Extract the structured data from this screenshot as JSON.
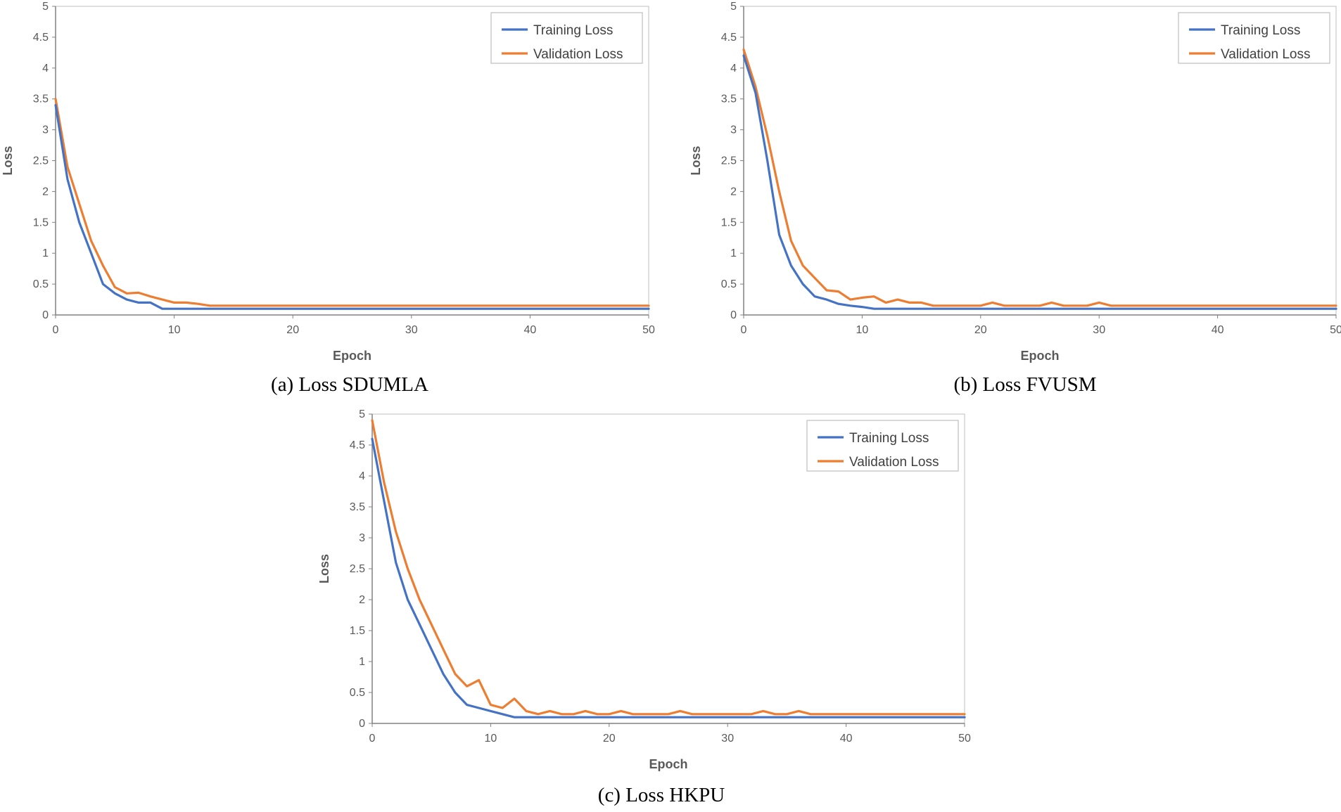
{
  "colors": {
    "training": "#4472C4",
    "validation": "#ED7D31",
    "axis": "#808080",
    "text": "#595959"
  },
  "chart_data": [
    {
      "type": "line",
      "caption": "(a) Loss SDUMLA",
      "xlabel": "Epoch",
      "ylabel": "Loss",
      "xlim": [
        0,
        50
      ],
      "ylim": [
        0,
        5
      ],
      "xticks": [
        "0",
        "10",
        "20",
        "30",
        "40",
        "50"
      ],
      "yticks": [
        "0",
        "0.5",
        "1",
        "1.5",
        "2",
        "2.5",
        "3",
        "3.5",
        "4",
        "4.5",
        "5"
      ],
      "legend": "top-right",
      "series": [
        {
          "name": "Training Loss",
          "x": [
            0,
            1,
            2,
            3,
            4,
            5,
            6,
            7,
            8,
            9,
            10,
            11,
            12,
            13,
            14,
            15,
            16,
            17,
            18,
            19,
            20,
            21,
            22,
            23,
            24,
            25,
            26,
            27,
            28,
            29,
            30,
            31,
            32,
            33,
            34,
            35,
            36,
            37,
            38,
            39,
            40,
            41,
            42,
            43,
            44,
            45,
            46,
            47,
            48,
            49,
            50
          ],
          "values": [
            3.4,
            2.2,
            1.5,
            1.0,
            0.5,
            0.35,
            0.25,
            0.2,
            0.2,
            0.1,
            0.1,
            0.1,
            0.1,
            0.1,
            0.1,
            0.1,
            0.1,
            0.1,
            0.1,
            0.1,
            0.1,
            0.1,
            0.1,
            0.1,
            0.1,
            0.1,
            0.1,
            0.1,
            0.1,
            0.1,
            0.1,
            0.1,
            0.1,
            0.1,
            0.1,
            0.1,
            0.1,
            0.1,
            0.1,
            0.1,
            0.1,
            0.1,
            0.1,
            0.1,
            0.1,
            0.1,
            0.1,
            0.1,
            0.1,
            0.1,
            0.1
          ]
        },
        {
          "name": "Validation Loss",
          "x": [
            0,
            1,
            2,
            3,
            4,
            5,
            6,
            7,
            8,
            9,
            10,
            11,
            12,
            13,
            14,
            15,
            16,
            17,
            18,
            19,
            20,
            21,
            22,
            23,
            24,
            25,
            26,
            27,
            28,
            29,
            30,
            31,
            32,
            33,
            34,
            35,
            36,
            37,
            38,
            39,
            40,
            41,
            42,
            43,
            44,
            45,
            46,
            47,
            48,
            49,
            50
          ],
          "values": [
            3.5,
            2.4,
            1.8,
            1.2,
            0.8,
            0.45,
            0.35,
            0.36,
            0.3,
            0.25,
            0.2,
            0.2,
            0.18,
            0.15,
            0.15,
            0.15,
            0.15,
            0.15,
            0.15,
            0.15,
            0.15,
            0.15,
            0.15,
            0.15,
            0.15,
            0.15,
            0.15,
            0.15,
            0.15,
            0.15,
            0.15,
            0.15,
            0.15,
            0.15,
            0.15,
            0.15,
            0.15,
            0.15,
            0.15,
            0.15,
            0.15,
            0.15,
            0.15,
            0.15,
            0.15,
            0.15,
            0.15,
            0.15,
            0.15,
            0.15,
            0.15
          ]
        }
      ]
    },
    {
      "type": "line",
      "caption": "(b) Loss FVUSM",
      "xlabel": "Epoch",
      "ylabel": "Loss",
      "xlim": [
        0,
        50
      ],
      "ylim": [
        0,
        5
      ],
      "xticks": [
        "0",
        "10",
        "20",
        "30",
        "40",
        "50"
      ],
      "yticks": [
        "0",
        "0.5",
        "1",
        "1.5",
        "2",
        "2.5",
        "3",
        "3.5",
        "4",
        "4.5",
        "5"
      ],
      "legend": "top-right",
      "series": [
        {
          "name": "Training Loss",
          "x": [
            0,
            1,
            2,
            3,
            4,
            5,
            6,
            7,
            8,
            9,
            10,
            11,
            12,
            13,
            14,
            15,
            16,
            17,
            18,
            19,
            20,
            21,
            22,
            23,
            24,
            25,
            26,
            27,
            28,
            29,
            30,
            31,
            32,
            33,
            34,
            35,
            36,
            37,
            38,
            39,
            40,
            41,
            42,
            43,
            44,
            45,
            46,
            47,
            48,
            49,
            50
          ],
          "values": [
            4.2,
            3.6,
            2.5,
            1.3,
            0.8,
            0.5,
            0.3,
            0.25,
            0.18,
            0.15,
            0.13,
            0.1,
            0.1,
            0.1,
            0.1,
            0.1,
            0.1,
            0.1,
            0.1,
            0.1,
            0.1,
            0.1,
            0.1,
            0.1,
            0.1,
            0.1,
            0.1,
            0.1,
            0.1,
            0.1,
            0.1,
            0.1,
            0.1,
            0.1,
            0.1,
            0.1,
            0.1,
            0.1,
            0.1,
            0.1,
            0.1,
            0.1,
            0.1,
            0.1,
            0.1,
            0.1,
            0.1,
            0.1,
            0.1,
            0.1,
            0.1
          ]
        },
        {
          "name": "Validation Loss",
          "x": [
            0,
            1,
            2,
            3,
            4,
            5,
            6,
            7,
            8,
            9,
            10,
            11,
            12,
            13,
            14,
            15,
            16,
            17,
            18,
            19,
            20,
            21,
            22,
            23,
            24,
            25,
            26,
            27,
            28,
            29,
            30,
            31,
            32,
            33,
            34,
            35,
            36,
            37,
            38,
            39,
            40,
            41,
            42,
            43,
            44,
            45,
            46,
            47,
            48,
            49,
            50
          ],
          "values": [
            4.3,
            3.7,
            2.9,
            2.0,
            1.2,
            0.8,
            0.6,
            0.4,
            0.38,
            0.25,
            0.28,
            0.3,
            0.2,
            0.25,
            0.2,
            0.2,
            0.15,
            0.15,
            0.15,
            0.15,
            0.15,
            0.2,
            0.15,
            0.15,
            0.15,
            0.15,
            0.2,
            0.15,
            0.15,
            0.15,
            0.2,
            0.15,
            0.15,
            0.15,
            0.15,
            0.15,
            0.15,
            0.15,
            0.15,
            0.15,
            0.15,
            0.15,
            0.15,
            0.15,
            0.15,
            0.15,
            0.15,
            0.15,
            0.15,
            0.15,
            0.15
          ]
        }
      ]
    },
    {
      "type": "line",
      "caption": "(c) Loss HKPU",
      "xlabel": "Epoch",
      "ylabel": "Loss",
      "xlim": [
        0,
        50
      ],
      "ylim": [
        0,
        5
      ],
      "xticks": [
        "0",
        "10",
        "20",
        "30",
        "40",
        "50"
      ],
      "yticks": [
        "0",
        "0.5",
        "1",
        "1.5",
        "2",
        "2.5",
        "3",
        "3.5",
        "4",
        "4.5",
        "5"
      ],
      "legend": "top-right",
      "series": [
        {
          "name": "Training Loss",
          "x": [
            0,
            1,
            2,
            3,
            4,
            5,
            6,
            7,
            8,
            9,
            10,
            11,
            12,
            13,
            14,
            15,
            16,
            17,
            18,
            19,
            20,
            21,
            22,
            23,
            24,
            25,
            26,
            27,
            28,
            29,
            30,
            31,
            32,
            33,
            34,
            35,
            36,
            37,
            38,
            39,
            40,
            41,
            42,
            43,
            44,
            45,
            46,
            47,
            48,
            49,
            50
          ],
          "values": [
            4.6,
            3.6,
            2.6,
            2.0,
            1.6,
            1.2,
            0.8,
            0.5,
            0.3,
            0.25,
            0.2,
            0.15,
            0.1,
            0.1,
            0.1,
            0.1,
            0.1,
            0.1,
            0.1,
            0.1,
            0.1,
            0.1,
            0.1,
            0.1,
            0.1,
            0.1,
            0.1,
            0.1,
            0.1,
            0.1,
            0.1,
            0.1,
            0.1,
            0.1,
            0.1,
            0.1,
            0.1,
            0.1,
            0.1,
            0.1,
            0.1,
            0.1,
            0.1,
            0.1,
            0.1,
            0.1,
            0.1,
            0.1,
            0.1,
            0.1,
            0.1
          ]
        },
        {
          "name": "Validation Loss",
          "x": [
            0,
            1,
            2,
            3,
            4,
            5,
            6,
            7,
            8,
            9,
            10,
            11,
            12,
            13,
            14,
            15,
            16,
            17,
            18,
            19,
            20,
            21,
            22,
            23,
            24,
            25,
            26,
            27,
            28,
            29,
            30,
            31,
            32,
            33,
            34,
            35,
            36,
            37,
            38,
            39,
            40,
            41,
            42,
            43,
            44,
            45,
            46,
            47,
            48,
            49,
            50
          ],
          "values": [
            4.9,
            3.9,
            3.1,
            2.5,
            2.0,
            1.6,
            1.2,
            0.8,
            0.6,
            0.7,
            0.3,
            0.25,
            0.4,
            0.2,
            0.15,
            0.2,
            0.15,
            0.15,
            0.2,
            0.15,
            0.15,
            0.2,
            0.15,
            0.15,
            0.15,
            0.15,
            0.2,
            0.15,
            0.15,
            0.15,
            0.15,
            0.15,
            0.15,
            0.2,
            0.15,
            0.15,
            0.2,
            0.15,
            0.15,
            0.15,
            0.15,
            0.15,
            0.15,
            0.15,
            0.15,
            0.15,
            0.15,
            0.15,
            0.15,
            0.15,
            0.15
          ]
        }
      ]
    }
  ]
}
